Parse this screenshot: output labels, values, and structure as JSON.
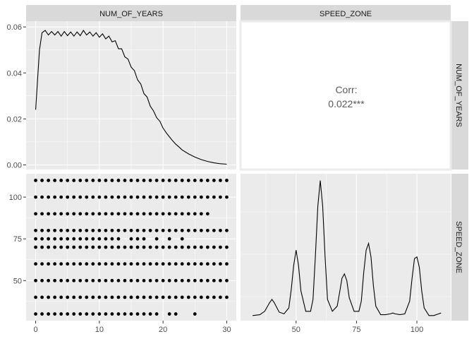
{
  "chart_data": {
    "type": "scatter",
    "variables": [
      "NUM_OF_YEARS",
      "SPEED_ZONE"
    ],
    "strips": {
      "top": [
        "NUM_OF_YEARS",
        "SPEED_ZONE"
      ],
      "right": [
        "NUM_OF_YEARS",
        "SPEED_ZONE"
      ]
    },
    "density_num_of_years": {
      "x": [
        0,
        0.3,
        0.6,
        1,
        1.5,
        2,
        2.5,
        3,
        3.5,
        4,
        4.5,
        5,
        5.5,
        6,
        6.5,
        7,
        7.5,
        8,
        8.5,
        9,
        9.5,
        10,
        10.5,
        11,
        11.5,
        12,
        12.5,
        13,
        13.5,
        14,
        14.5,
        15,
        15.5,
        16,
        16.5,
        17,
        17.5,
        18,
        18.5,
        19,
        19.5,
        20,
        20.5,
        21,
        21.5,
        22,
        22.5,
        23,
        24,
        25,
        26,
        27,
        28,
        29,
        30
      ],
      "y": [
        0.024,
        0.037,
        0.05,
        0.0575,
        0.0585,
        0.0565,
        0.058,
        0.0565,
        0.058,
        0.056,
        0.058,
        0.0562,
        0.0578,
        0.056,
        0.0578,
        0.0562,
        0.0585,
        0.0565,
        0.0578,
        0.056,
        0.0575,
        0.0555,
        0.057,
        0.0548,
        0.056,
        0.0535,
        0.054,
        0.0505,
        0.0505,
        0.047,
        0.046,
        0.0425,
        0.041,
        0.037,
        0.0352,
        0.031,
        0.0295,
        0.0255,
        0.0235,
        0.0205,
        0.019,
        0.016,
        0.014,
        0.0122,
        0.0105,
        0.009,
        0.0078,
        0.0065,
        0.0048,
        0.0034,
        0.0023,
        0.0015,
        0.0009,
        0.0005,
        0.0003
      ],
      "ylim": [
        -0.002,
        0.0625
      ],
      "xlim": [
        -1.5,
        31.5
      ],
      "yticks": [
        0.0,
        0.02,
        0.04,
        0.06
      ],
      "ytick_labels": [
        "0.00",
        "0.02",
        "0.04",
        "0.06"
      ]
    },
    "correlation": {
      "label": "Corr:",
      "value": "0.022***"
    },
    "scatter_num_of_years_vs_speed_zone": {
      "rows": [
        {
          "speed_zone": 110,
          "years": [
            0,
            1,
            2,
            3,
            4,
            5,
            6,
            7,
            8,
            9,
            10,
            11,
            12,
            13,
            14,
            15,
            16,
            17,
            18,
            19,
            20,
            21,
            22,
            23,
            24,
            25,
            26,
            27,
            28,
            29,
            30
          ]
        },
        {
          "speed_zone": 100,
          "years": [
            0,
            1,
            2,
            3,
            4,
            5,
            6,
            7,
            8,
            9,
            10,
            11,
            12,
            13,
            14,
            15,
            16,
            17,
            18,
            19,
            20,
            21,
            22,
            23,
            24,
            25,
            26,
            27,
            28,
            29,
            30
          ]
        },
        {
          "speed_zone": 90,
          "years": [
            0,
            1,
            2,
            3,
            4,
            5,
            6,
            7,
            8,
            9,
            10,
            11,
            12,
            13,
            14,
            15,
            16,
            17,
            18,
            19,
            20,
            21,
            22,
            23,
            24,
            25,
            26,
            27
          ]
        },
        {
          "speed_zone": 80,
          "years": [
            0,
            1,
            2,
            3,
            4,
            5,
            6,
            7,
            8,
            9,
            10,
            11,
            12,
            13,
            14,
            15,
            16,
            17,
            18,
            19,
            20,
            21,
            22,
            23,
            24,
            25,
            26,
            27,
            28,
            29,
            30
          ]
        },
        {
          "speed_zone": 75,
          "years": [
            0,
            1,
            2,
            3,
            4,
            5,
            6,
            7,
            8,
            9,
            10,
            11,
            12,
            13,
            15,
            16,
            17,
            19,
            21,
            23
          ]
        },
        {
          "speed_zone": 70,
          "years": [
            0,
            1,
            2,
            3,
            4,
            5,
            6,
            7,
            8,
            9,
            10,
            11,
            12,
            13,
            14,
            15,
            16,
            17,
            18,
            19,
            20,
            21,
            22,
            23,
            24,
            25,
            26,
            27,
            28,
            29,
            30
          ]
        },
        {
          "speed_zone": 60,
          "years": [
            0,
            1,
            2,
            3,
            4,
            5,
            6,
            7,
            8,
            9,
            10,
            11,
            12,
            13,
            14,
            15,
            16,
            17,
            18,
            19,
            20,
            21,
            22,
            23,
            24,
            25,
            26,
            27,
            28,
            29,
            30
          ]
        },
        {
          "speed_zone": 50,
          "years": [
            0,
            1,
            2,
            3,
            4,
            5,
            6,
            7,
            8,
            9,
            10,
            11,
            12,
            13,
            14,
            15,
            16,
            17,
            18,
            19,
            20,
            21,
            22,
            23,
            24,
            25,
            26,
            27,
            28,
            29,
            30
          ]
        },
        {
          "speed_zone": 40,
          "years": [
            0,
            1,
            2,
            3,
            4,
            5,
            6,
            7,
            8,
            9,
            10,
            11,
            12,
            13,
            14,
            15,
            16,
            17,
            18,
            19,
            20,
            21,
            22,
            23,
            24,
            25,
            26,
            27,
            28,
            29,
            30
          ]
        },
        {
          "speed_zone": 30,
          "years": [
            0,
            1,
            2,
            3,
            4,
            5,
            6,
            7,
            8,
            9,
            10,
            11,
            12,
            13,
            14,
            15,
            16,
            17,
            18,
            19,
            21,
            22,
            25
          ]
        }
      ],
      "xlim": [
        -1.5,
        31.5
      ],
      "ylim": [
        26,
        114
      ],
      "xticks": [
        0,
        10,
        20,
        30
      ],
      "yticks": [
        50,
        75,
        100
      ]
    },
    "density_speed_zone": {
      "x": [
        32,
        35,
        37,
        39,
        40,
        41,
        43,
        45,
        47,
        48,
        49,
        50,
        51,
        52,
        54,
        56,
        57,
        58,
        59,
        60,
        61,
        62,
        63,
        65,
        67,
        68,
        69,
        70,
        71,
        72,
        74,
        76,
        77,
        78,
        79,
        80,
        81,
        82,
        83,
        85,
        87,
        89,
        90,
        91,
        93,
        95,
        97,
        98,
        99,
        100,
        101,
        102,
        103,
        105,
        107,
        109,
        110
      ],
      "y": [
        0.001,
        0.002,
        0.006,
        0.016,
        0.02,
        0.016,
        0.005,
        0.003,
        0.01,
        0.032,
        0.06,
        0.078,
        0.06,
        0.03,
        0.006,
        0.006,
        0.02,
        0.072,
        0.13,
        0.16,
        0.13,
        0.07,
        0.02,
        0.006,
        0.012,
        0.028,
        0.045,
        0.05,
        0.042,
        0.022,
        0.006,
        0.006,
        0.018,
        0.052,
        0.078,
        0.086,
        0.07,
        0.036,
        0.012,
        0.002,
        0.002,
        0.003,
        0.004,
        0.003,
        0.002,
        0.003,
        0.018,
        0.045,
        0.068,
        0.07,
        0.058,
        0.03,
        0.01,
        0.001,
        0.001,
        0.003,
        0.004
      ],
      "xlim": [
        27,
        114
      ],
      "ylim": [
        -0.005,
        0.168
      ],
      "xticks": [
        50,
        75,
        100
      ]
    },
    "x_tick_labels_left": [
      "0",
      "10",
      "20",
      "30"
    ],
    "x_tick_labels_right": [
      "50",
      "75",
      "100"
    ],
    "y_tick_labels_bottom": [
      "50",
      "75",
      "100"
    ]
  }
}
